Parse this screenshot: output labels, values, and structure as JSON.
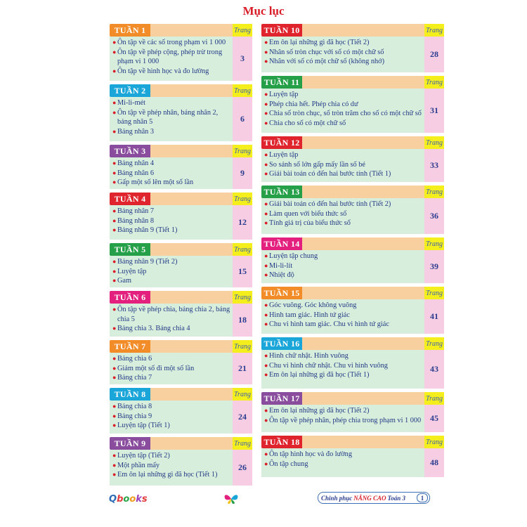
{
  "title": "Mục lục",
  "trang_label": "Trang",
  "bullet": "●",
  "left_weeks": [
    {
      "tag": "TUẦN 1",
      "color": "#f28c28",
      "page": "3",
      "items": [
        "Ôn tập về các số trong phạm vi 1 000",
        "Ôn tập về phép cộng, phép trừ trong phạm vi 1 000",
        "Ôn tập về hình học và đo lường"
      ]
    },
    {
      "tag": "TUẦN 2",
      "color": "#1ba6d9",
      "page": "6",
      "items": [
        "Mi-li-mét",
        "Ôn tập về phép nhân, bảng nhân 2, bảng nhân 5",
        "Bảng nhân 3"
      ]
    },
    {
      "tag": "TUẦN 3",
      "color": "#8a4c9c",
      "page": "9",
      "items": [
        "Bảng nhân 4",
        "Bảng nhân 6",
        "Gấp một số lên một số lần"
      ]
    },
    {
      "tag": "TUẦN 4",
      "color": "#e0242e",
      "page": "12",
      "items": [
        "Bảng nhân 7",
        "Bảng nhân 8",
        "Bảng nhân 9 (Tiết 1)"
      ]
    },
    {
      "tag": "TUẦN 5",
      "color": "#25a048",
      "page": "15",
      "items": [
        "Bảng nhân 9 (Tiết 2)",
        "Luyện tập",
        "Gam"
      ]
    },
    {
      "tag": "TUẦN 6",
      "color": "#e4207e",
      "page": "18",
      "items": [
        "Ôn tập về phép chia, bảng chia 2, bảng chia 5",
        "Bảng chia 3. Bảng chia 4"
      ]
    },
    {
      "tag": "TUẦN 7",
      "color": "#f28c28",
      "page": "21",
      "items": [
        "Bảng chia 6",
        "Giảm một số đi một số lần",
        "Bảng chia 7"
      ]
    },
    {
      "tag": "TUẦN 8",
      "color": "#1ba6d9",
      "page": "24",
      "items": [
        "Bảng chia 8",
        "Bảng chia 9",
        "Luyện tập (Tiết 1)"
      ]
    },
    {
      "tag": "TUẦN 9",
      "color": "#8a4c9c",
      "page": "26",
      "items": [
        "Luyện tập (Tiết 2)",
        "Một phần mấy",
        "Em ôn lại những gì đã học (Tiết 1)"
      ]
    }
  ],
  "right_weeks": [
    {
      "tag": "TUẦN 10",
      "color": "#e0242e",
      "page": "28",
      "items": [
        "Em ôn lại những gì đã học (Tiết 2)",
        "Nhân số tròn chục với số có một chữ số",
        "Nhân với số có một chữ số (không nhớ)"
      ]
    },
    {
      "tag": "TUẦN 11",
      "color": "#25a048",
      "page": "31",
      "items": [
        "Luyện tập",
        "Phép chia hết. Phép chia có dư",
        "Chia số tròn chục, số tròn trăm cho số có một chữ số",
        "Chia cho số có một chữ số"
      ]
    },
    {
      "tag": "TUẦN 12",
      "color": "#e0242e",
      "page": "33",
      "items": [
        "Luyện tập",
        "So sánh số lớn gấp mấy lần số bé",
        "Giải bài toán có đến hai bước tính (Tiết 1)"
      ]
    },
    {
      "tag": "TUẦN 13",
      "color": "#25a048",
      "page": "36",
      "items": [
        "Giải bài toán có đến hai bước tính (Tiết 2)",
        "Làm quen với biểu thức số",
        "Tính giá trị của biểu thức số"
      ]
    },
    {
      "tag": "TUẦN 14",
      "color": "#e4207e",
      "page": "39",
      "items": [
        "Luyện tập chung",
        "Mi-li-lít",
        "Nhiệt độ"
      ]
    },
    {
      "tag": "TUẦN 15",
      "color": "#f28c28",
      "page": "41",
      "items": [
        "Góc vuông. Góc không vuông",
        "Hình tam giác. Hình tứ giác",
        "Chu vi hình tam giác. Chu vi hình tứ giác"
      ]
    },
    {
      "tag": "TUẦN 16",
      "color": "#1ba6d9",
      "page": "43",
      "items": [
        "Hình chữ nhật. Hình vuông",
        "Chu vi hình chữ nhật. Chu vi hình vuông",
        "Em ôn lại những gì đã học (Tiết 1)"
      ]
    },
    {
      "tag": "TUẦN 17",
      "color": "#8a4c9c",
      "page": "45",
      "items": [
        "Em ôn lại những gì đã học (Tiết 2)",
        "Ôn tập về phép nhân, phép chia trong phạm vi 1 000"
      ]
    },
    {
      "tag": "TUẦN 18",
      "color": "#e0242e",
      "page": "48",
      "items": [
        "Ôn tập hình học và đo lường",
        "Ôn tập chung"
      ]
    }
  ],
  "footer": {
    "logo": "Qbooks",
    "book_prefix": "Chinh phục",
    "book_highlight": "NÂNG CAO",
    "book_suffix": "Toán 3",
    "page_number": "1"
  }
}
